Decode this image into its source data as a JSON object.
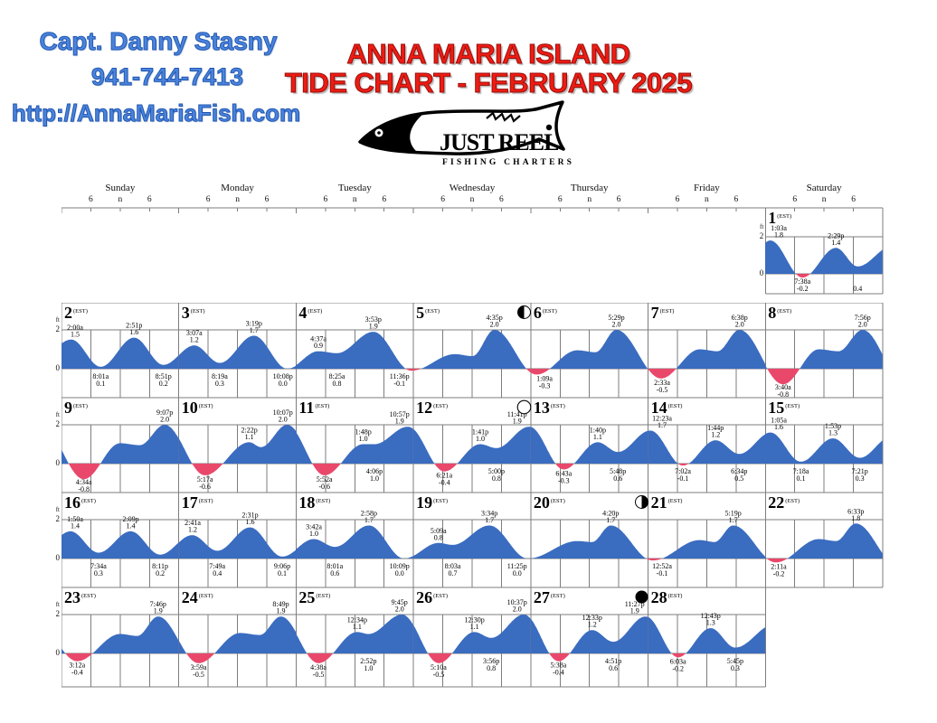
{
  "header": {
    "captain": "Capt. Danny Stasny",
    "phone": "941-744-7413",
    "website": "http://AnnaMariaFish.com",
    "title_line1": "ANNA MARIA ISLAND",
    "title_line2": "TIDE CHART - FEBRUARY 2025",
    "colors": {
      "blue": "#4a84dd",
      "red": "#ee1c14"
    }
  },
  "logo": {
    "name": "JUST REEL",
    "subtitle": "FISHING CHARTERS"
  },
  "calendar": {
    "weekdays": [
      "Sunday",
      "Monday",
      "Tuesday",
      "Wednesday",
      "Thursday",
      "Friday",
      "Saturday"
    ],
    "hour_labels": [
      "6",
      "n",
      "6"
    ],
    "axis": {
      "unit": "ft",
      "max_label": "2",
      "zero_label": "0"
    },
    "timezone": "(EST)",
    "colors": {
      "tide_fill": "#3a6cc0",
      "negative_fill": "#e9486b",
      "grid": "#7d7d7d"
    }
  },
  "chart_data": {
    "type": "area",
    "title": "Anna Maria Island Tide Chart - February 2025",
    "ylabel": "ft",
    "ylim": [
      -1,
      2
    ],
    "x_axis": "time of day, ticks at 6am / noon / 6pm per day",
    "grid": true,
    "moon_phases": [
      {
        "day": 6,
        "phase": "first-quarter"
      },
      {
        "day": 13,
        "phase": "full"
      },
      {
        "day": 21,
        "phase": "last-quarter"
      },
      {
        "day": 28,
        "phase": "new"
      }
    ],
    "days": [
      {
        "day": 1,
        "events": [
          {
            "time": "1:03a",
            "height": 1.8,
            "type": "high"
          },
          {
            "time": "7:38a",
            "height": -0.2,
            "type": "low"
          },
          {
            "time": "2:29p",
            "height": 1.4,
            "type": "high"
          },
          {
            "time": "",
            "minutes": 1135,
            "height": 0.4,
            "type": "low"
          }
        ]
      },
      {
        "day": 2,
        "events": [
          {
            "time": "2:00a",
            "height": 1.5,
            "type": "high"
          },
          {
            "time": "8:01a",
            "height": 0.1,
            "type": "low"
          },
          {
            "time": "2:51p",
            "height": 1.6,
            "type": "high"
          },
          {
            "time": "8:51p",
            "height": 0.2,
            "type": "low"
          }
        ]
      },
      {
        "day": 3,
        "events": [
          {
            "time": "3:07a",
            "height": 1.2,
            "type": "high"
          },
          {
            "time": "8:19a",
            "height": 0.3,
            "type": "low"
          },
          {
            "time": "3:19p",
            "height": 1.7,
            "type": "high"
          },
          {
            "time": "10:08p",
            "height": 0.0,
            "type": "low"
          }
        ]
      },
      {
        "day": 4,
        "events": [
          {
            "time": "4:37a",
            "height": 0.9,
            "type": "high"
          },
          {
            "time": "8:25a",
            "height": 0.8,
            "type": "low"
          },
          {
            "time": "3:53p",
            "height": 1.9,
            "type": "high"
          },
          {
            "time": "11:36p",
            "height": -0.1,
            "type": "low"
          }
        ]
      },
      {
        "day": 5,
        "events": [
          {
            "minutes": 510,
            "height": 0.75,
            "type": "shape",
            "hidden": true
          },
          {
            "minutes": 725,
            "height": 0.65,
            "type": "shape",
            "hidden": true
          },
          {
            "time": "4:35p",
            "height": 2.0,
            "type": "high"
          }
        ]
      },
      {
        "day": 6,
        "events": [
          {
            "time": "1:09a",
            "height": -0.3,
            "type": "low"
          },
          {
            "minutes": 570,
            "height": 0.95,
            "type": "shape",
            "hidden": true
          },
          {
            "minutes": 790,
            "height": 0.85,
            "type": "shape",
            "hidden": true
          },
          {
            "time": "5:29p",
            "height": 2.0,
            "type": "high"
          }
        ]
      },
      {
        "day": 7,
        "events": [
          {
            "time": "2:33a",
            "height": -0.5,
            "type": "low"
          },
          {
            "minutes": 630,
            "height": 1.0,
            "type": "shape",
            "hidden": true
          },
          {
            "minutes": 845,
            "height": 0.9,
            "type": "shape",
            "hidden": true
          },
          {
            "time": "6:38p",
            "height": 2.0,
            "type": "high"
          }
        ]
      },
      {
        "day": 8,
        "events": [
          {
            "time": "3:40a",
            "height": -0.8,
            "type": "low"
          },
          {
            "minutes": 660,
            "height": 1.0,
            "type": "shape",
            "hidden": true
          },
          {
            "minutes": 900,
            "height": 0.9,
            "type": "shape",
            "hidden": true
          },
          {
            "time": "7:56p",
            "height": 2.0,
            "type": "high"
          }
        ]
      },
      {
        "day": 9,
        "events": [
          {
            "time": "4:34a",
            "height": -0.8,
            "type": "low"
          },
          {
            "minutes": 720,
            "height": 1.05,
            "type": "shape",
            "hidden": true
          },
          {
            "minutes": 960,
            "height": 0.95,
            "type": "shape",
            "hidden": true
          },
          {
            "time": "9:07p",
            "height": 2.0,
            "type": "high"
          }
        ]
      },
      {
        "day": 10,
        "events": [
          {
            "time": "5:17a",
            "height": -0.6,
            "type": "low"
          },
          {
            "time": "2:22p",
            "height": 1.1,
            "type": "high"
          },
          {
            "minutes": 1005,
            "height": 0.85,
            "type": "shape",
            "hidden": true
          },
          {
            "time": "10:07p",
            "height": 2.0,
            "type": "high"
          }
        ]
      },
      {
        "day": 11,
        "events": [
          {
            "time": "5:52a",
            "height": -0.6,
            "type": "low"
          },
          {
            "time": "1:48p",
            "height": 1.0,
            "type": "high"
          },
          {
            "time": "4:06p",
            "height": 1.0,
            "type": "low"
          },
          {
            "time": "10:57p",
            "height": 1.9,
            "type": "high"
          }
        ]
      },
      {
        "day": 12,
        "events": [
          {
            "time": "6:21a",
            "height": -0.4,
            "type": "low"
          },
          {
            "time": "1:41p",
            "height": 1.0,
            "type": "high"
          },
          {
            "time": "5:00p",
            "height": 0.8,
            "type": "low"
          },
          {
            "time": "11:41p",
            "height": 1.9,
            "type": "high"
          }
        ]
      },
      {
        "day": 13,
        "events": [
          {
            "time": "6:43a",
            "height": -0.3,
            "type": "low"
          },
          {
            "time": "1:40p",
            "height": 1.1,
            "type": "high"
          },
          {
            "time": "5:48p",
            "height": 0.6,
            "type": "low"
          }
        ]
      },
      {
        "day": 14,
        "events": [
          {
            "time": "12:23a",
            "height": 1.7,
            "type": "high"
          },
          {
            "time": "7:02a",
            "height": -0.1,
            "type": "low"
          },
          {
            "time": "1:44p",
            "height": 1.2,
            "type": "high"
          },
          {
            "time": "6:34p",
            "height": 0.5,
            "type": "low"
          }
        ]
      },
      {
        "day": 15,
        "events": [
          {
            "time": "1:05a",
            "height": 1.6,
            "type": "high"
          },
          {
            "time": "7:18a",
            "height": 0.1,
            "type": "low"
          },
          {
            "time": "1:53p",
            "height": 1.3,
            "type": "high"
          },
          {
            "time": "7:21p",
            "height": 0.3,
            "type": "low"
          }
        ]
      },
      {
        "day": 16,
        "events": [
          {
            "time": "1:50a",
            "height": 1.4,
            "type": "high"
          },
          {
            "time": "7:34a",
            "height": 0.3,
            "type": "low"
          },
          {
            "time": "2:09p",
            "height": 1.4,
            "type": "high"
          },
          {
            "time": "8:11p",
            "height": 0.2,
            "type": "low"
          }
        ]
      },
      {
        "day": 17,
        "events": [
          {
            "time": "2:41a",
            "height": 1.2,
            "type": "high"
          },
          {
            "time": "7:49a",
            "height": 0.4,
            "type": "low"
          },
          {
            "time": "2:31p",
            "height": 1.6,
            "type": "high"
          },
          {
            "time": "9:06p",
            "height": 0.1,
            "type": "low"
          }
        ]
      },
      {
        "day": 18,
        "events": [
          {
            "time": "3:42a",
            "height": 1.0,
            "type": "high"
          },
          {
            "time": "8:01a",
            "height": 0.6,
            "type": "low"
          },
          {
            "time": "2:58p",
            "height": 1.7,
            "type": "high"
          },
          {
            "time": "10:09p",
            "height": 0.0,
            "type": "low"
          }
        ]
      },
      {
        "day": 19,
        "events": [
          {
            "time": "5:09a",
            "height": 0.8,
            "type": "high"
          },
          {
            "time": "8:03a",
            "height": 0.7,
            "type": "low"
          },
          {
            "time": "3:34p",
            "height": 1.7,
            "type": "high"
          },
          {
            "time": "11:25p",
            "height": 0.0,
            "type": "low"
          }
        ]
      },
      {
        "day": 20,
        "events": [
          {
            "minutes": 570,
            "height": 0.9,
            "type": "shape",
            "hidden": true
          },
          {
            "minutes": 750,
            "height": 0.85,
            "type": "shape",
            "hidden": true
          },
          {
            "time": "4:20p",
            "height": 1.7,
            "type": "high"
          }
        ]
      },
      {
        "day": 21,
        "events": [
          {
            "time": "12:52a",
            "height": -0.1,
            "type": "low"
          },
          {
            "minutes": 630,
            "height": 0.95,
            "type": "shape",
            "hidden": true
          },
          {
            "minutes": 810,
            "height": 0.85,
            "type": "shape",
            "hidden": true
          },
          {
            "time": "5:19p",
            "height": 1.7,
            "type": "high"
          }
        ]
      },
      {
        "day": 22,
        "events": [
          {
            "time": "2:11a",
            "height": -0.2,
            "type": "low"
          },
          {
            "minutes": 660,
            "height": 1.0,
            "type": "shape",
            "hidden": true
          },
          {
            "minutes": 870,
            "height": 0.9,
            "type": "shape",
            "hidden": true
          },
          {
            "time": "6:33p",
            "height": 1.8,
            "type": "high"
          }
        ]
      },
      {
        "day": 23,
        "events": [
          {
            "time": "3:12a",
            "height": -0.4,
            "type": "low"
          },
          {
            "minutes": 720,
            "height": 1.0,
            "type": "shape",
            "hidden": true
          },
          {
            "minutes": 930,
            "height": 0.9,
            "type": "shape",
            "hidden": true
          },
          {
            "time": "7:46p",
            "height": 1.9,
            "type": "high"
          }
        ]
      },
      {
        "day": 24,
        "events": [
          {
            "time": "3:59a",
            "height": -0.5,
            "type": "low"
          },
          {
            "minutes": 750,
            "height": 1.05,
            "type": "shape",
            "hidden": true
          },
          {
            "minutes": 990,
            "height": 0.95,
            "type": "shape",
            "hidden": true
          },
          {
            "time": "8:49p",
            "height": 1.9,
            "type": "high"
          }
        ]
      },
      {
        "day": 25,
        "events": [
          {
            "time": "4:38a",
            "height": -0.5,
            "type": "low"
          },
          {
            "time": "12:34p",
            "height": 1.1,
            "type": "high"
          },
          {
            "time": "2:52p",
            "height": 1.0,
            "type": "low"
          },
          {
            "time": "9:45p",
            "height": 2.0,
            "type": "high"
          }
        ]
      },
      {
        "day": 26,
        "events": [
          {
            "time": "5:10a",
            "height": -0.5,
            "type": "low"
          },
          {
            "time": "12:30p",
            "height": 1.1,
            "type": "high"
          },
          {
            "time": "3:56p",
            "height": 0.8,
            "type": "low"
          },
          {
            "time": "10:37p",
            "height": 2.0,
            "type": "high"
          }
        ]
      },
      {
        "day": 27,
        "events": [
          {
            "time": "5:38a",
            "height": -0.4,
            "type": "low"
          },
          {
            "time": "12:33p",
            "height": 1.2,
            "type": "high"
          },
          {
            "time": "4:51p",
            "height": 0.6,
            "type": "low"
          },
          {
            "time": "11:27p",
            "height": 1.9,
            "type": "high"
          }
        ]
      },
      {
        "day": 28,
        "events": [
          {
            "time": "6:03a",
            "height": -0.2,
            "type": "low"
          },
          {
            "time": "12:43p",
            "height": 1.3,
            "type": "high"
          },
          {
            "time": "5:45p",
            "height": 0.3,
            "type": "low"
          }
        ]
      }
    ]
  }
}
